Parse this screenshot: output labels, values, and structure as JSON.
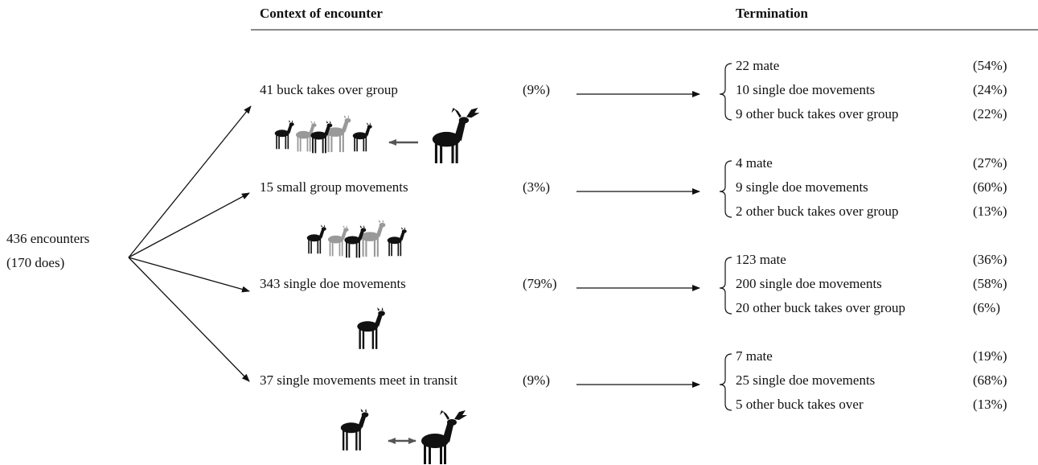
{
  "headers": {
    "context": "Context of encounter",
    "termination": "Termination"
  },
  "root": {
    "line1": "436 encounters",
    "line2": "(170 does)"
  },
  "contexts": [
    {
      "label": "41 buck takes over group",
      "percent": "(9%)",
      "outcomes": [
        {
          "label": "22 mate",
          "percent": "(54%)"
        },
        {
          "label": "10 single doe movements",
          "percent": "(24%)"
        },
        {
          "label": "9 other buck takes over group",
          "percent": "(22%)"
        }
      ]
    },
    {
      "label": "15 small group movements",
      "percent": "(3%)",
      "outcomes": [
        {
          "label": "4 mate",
          "percent": "(27%)"
        },
        {
          "label": "9 single doe movements",
          "percent": "(60%)"
        },
        {
          "label": "2 other buck takes over group",
          "percent": "(13%)"
        }
      ]
    },
    {
      "label": "343 single doe movements",
      "percent": "(79%)",
      "outcomes": [
        {
          "label": "123 mate",
          "percent": "(36%)"
        },
        {
          "label": "200 single doe movements",
          "percent": "(58%)"
        },
        {
          "label": "20 other buck takes over group",
          "percent": "(6%)"
        }
      ]
    },
    {
      "label": "37 single movements meet in transit",
      "percent": "(9%)",
      "outcomes": [
        {
          "label": "7 mate",
          "percent": "(19%)"
        },
        {
          "label": "25 single doe movements",
          "percent": "(68%)"
        },
        {
          "label": "5 other buck takes over",
          "percent": "(13%)"
        }
      ]
    }
  ]
}
